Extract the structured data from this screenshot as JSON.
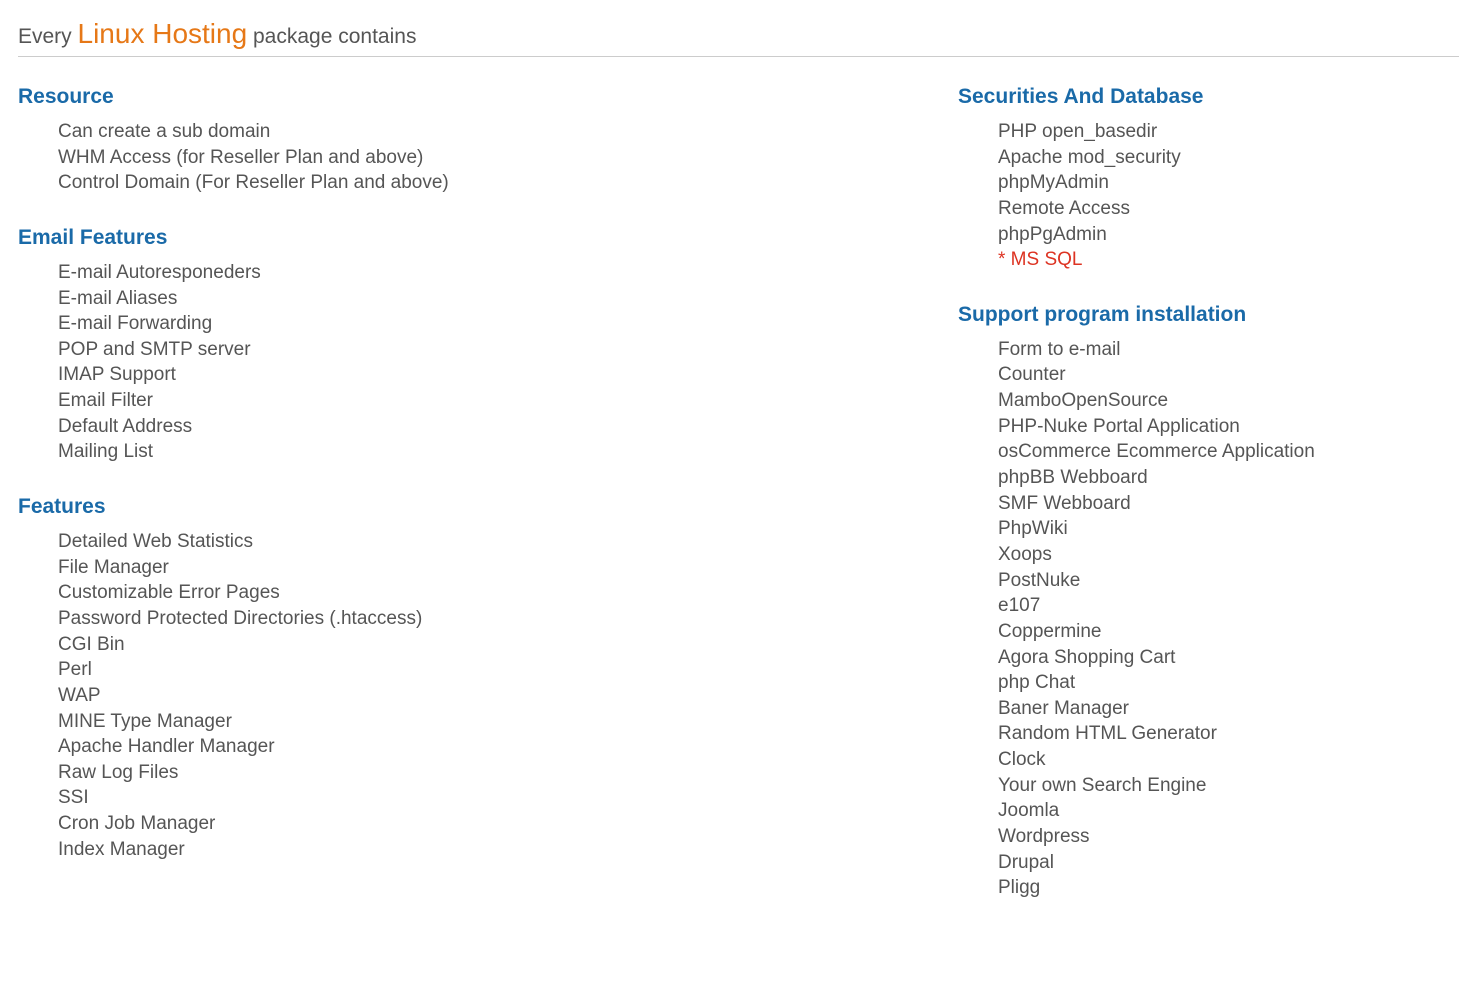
{
  "title": {
    "prefix": "Every ",
    "highlight": "Linux Hosting",
    "suffix": " package contains"
  },
  "colors": {
    "heading": "#1a6aa8",
    "highlight": "#e67817",
    "text": "#555555",
    "special": "#dd3322",
    "border": "#cccccc",
    "background": "#ffffff"
  },
  "leftSections": [
    {
      "heading": "Resource",
      "items": [
        {
          "text": "Can create a sub domain",
          "special": false
        },
        {
          "text": "WHM Access (for Reseller Plan and above)",
          "special": false
        },
        {
          "text": "Control Domain (For Reseller Plan and above)",
          "special": false
        }
      ]
    },
    {
      "heading": "Email Features",
      "items": [
        {
          "text": "E-mail Autoresponeders",
          "special": false
        },
        {
          "text": "E-mail Aliases",
          "special": false
        },
        {
          "text": "E-mail Forwarding",
          "special": false
        },
        {
          "text": "POP and SMTP server",
          "special": false
        },
        {
          "text": "IMAP Support",
          "special": false
        },
        {
          "text": "Email Filter",
          "special": false
        },
        {
          "text": "Default Address",
          "special": false
        },
        {
          "text": "Mailing List",
          "special": false
        }
      ]
    },
    {
      "heading": "Features",
      "items": [
        {
          "text": "Detailed Web Statistics",
          "special": false
        },
        {
          "text": "File Manager",
          "special": false
        },
        {
          "text": "Customizable Error Pages",
          "special": false
        },
        {
          "text": "Password Protected Directories (.htaccess)",
          "special": false
        },
        {
          "text": "CGI Bin",
          "special": false
        },
        {
          "text": "Perl",
          "special": false
        },
        {
          "text": "WAP",
          "special": false
        },
        {
          "text": "MINE Type Manager",
          "special": false
        },
        {
          "text": "Apache Handler Manager",
          "special": false
        },
        {
          "text": "Raw Log Files",
          "special": false
        },
        {
          "text": "SSI",
          "special": false
        },
        {
          "text": "Cron Job Manager",
          "special": false
        },
        {
          "text": "Index Manager",
          "special": false
        }
      ]
    }
  ],
  "rightSections": [
    {
      "heading": "Securities And Database",
      "items": [
        {
          "text": "PHP open_basedir",
          "special": false
        },
        {
          "text": "Apache mod_security",
          "special": false
        },
        {
          "text": "phpMyAdmin",
          "special": false
        },
        {
          "text": "Remote Access",
          "special": false
        },
        {
          "text": "phpPgAdmin",
          "special": false
        },
        {
          "text": "* MS SQL",
          "special": true
        }
      ]
    },
    {
      "heading": "Support program installation",
      "items": [
        {
          "text": "Form to e-mail",
          "special": false
        },
        {
          "text": "Counter",
          "special": false
        },
        {
          "text": "MamboOpenSource",
          "special": false
        },
        {
          "text": "PHP-Nuke Portal Application",
          "special": false
        },
        {
          "text": "osCommerce Ecommerce Application",
          "special": false
        },
        {
          "text": "phpBB Webboard",
          "special": false
        },
        {
          "text": "SMF Webboard",
          "special": false
        },
        {
          "text": "PhpWiki",
          "special": false
        },
        {
          "text": "Xoops",
          "special": false
        },
        {
          "text": "PostNuke",
          "special": false
        },
        {
          "text": "e107",
          "special": false
        },
        {
          "text": "Coppermine",
          "special": false
        },
        {
          "text": "Agora Shopping Cart",
          "special": false
        },
        {
          "text": "php Chat",
          "special": false
        },
        {
          "text": "Baner Manager",
          "special": false
        },
        {
          "text": "Random HTML Generator",
          "special": false
        },
        {
          "text": "Clock",
          "special": false
        },
        {
          "text": "Your own Search Engine",
          "special": false
        },
        {
          "text": "Joomla",
          "special": false
        },
        {
          "text": "Wordpress",
          "special": false
        },
        {
          "text": "Drupal",
          "special": false
        },
        {
          "text": "Pligg",
          "special": false
        }
      ]
    }
  ]
}
